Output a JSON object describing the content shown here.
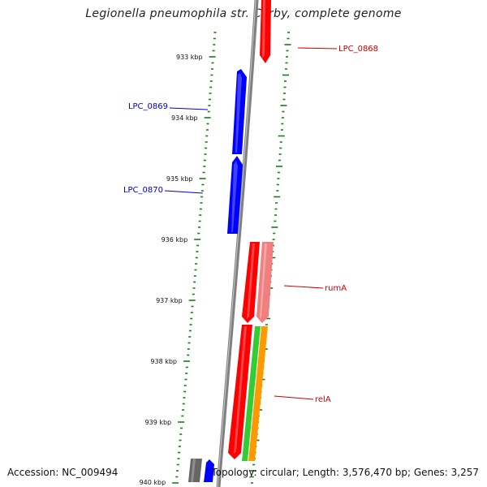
{
  "title": "Legionella pneumophila str. Corby, complete genome",
  "footer": {
    "accession": "Accession: NC_009494",
    "summary": "Topology: circular; Length: 3,576,470 bp; Genes: 3,257"
  },
  "colors": {
    "backbone": "#808080",
    "tick": "#1a7a1a",
    "forward_cds": "#ff0000",
    "reverse_cds": "#0000ff",
    "rRNA_like": "#f08080",
    "green_feature": "#33cc33",
    "orange_feature": "#ff9900",
    "gray_feature": "#666666",
    "label_blue": "#0000cc",
    "label_red": "#cc0000"
  },
  "scale_labels": [
    "933 kbp",
    "934 kbp",
    "935 kbp",
    "936 kbp",
    "937 kbp",
    "938 kbp",
    "939 kbp",
    "940 kbp"
  ],
  "gene_labels": [
    {
      "name": "LPC_0868",
      "color": "#cc0000"
    },
    {
      "name": "LPC_0869",
      "color": "#0000cc"
    },
    {
      "name": "LPC_0870",
      "color": "#0000cc"
    },
    {
      "name": "rumA",
      "color": "#cc0000"
    },
    {
      "name": "relA",
      "color": "#cc0000"
    }
  ]
}
